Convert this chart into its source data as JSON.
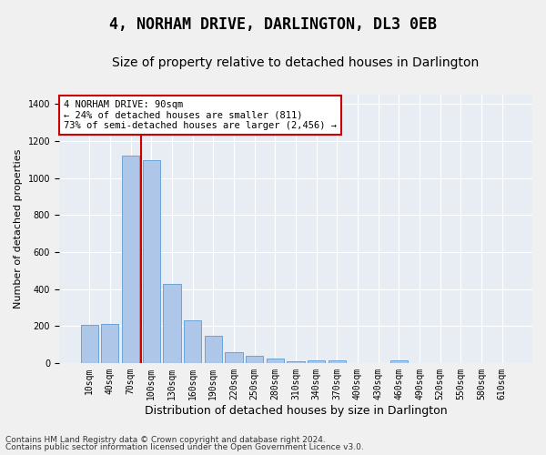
{
  "title": "4, NORHAM DRIVE, DARLINGTON, DL3 0EB",
  "subtitle": "Size of property relative to detached houses in Darlington",
  "xlabel": "Distribution of detached houses by size in Darlington",
  "ylabel": "Number of detached properties",
  "categories": [
    "10sqm",
    "40sqm",
    "70sqm",
    "100sqm",
    "130sqm",
    "160sqm",
    "190sqm",
    "220sqm",
    "250sqm",
    "280sqm",
    "310sqm",
    "340sqm",
    "370sqm",
    "400sqm",
    "430sqm",
    "460sqm",
    "490sqm",
    "520sqm",
    "550sqm",
    "580sqm",
    "610sqm"
  ],
  "values": [
    207,
    210,
    1120,
    1095,
    425,
    230,
    145,
    57,
    38,
    25,
    10,
    15,
    15,
    0,
    0,
    12,
    0,
    0,
    0,
    0,
    0
  ],
  "bar_color": "#aec6e8",
  "bar_edge_color": "#5b9bd5",
  "background_color": "#e8edf4",
  "fig_background_color": "#f0f0f0",
  "grid_color": "#ffffff",
  "vline_color": "#cc0000",
  "vline_x_index": 2.5,
  "annotation_box_text": "4 NORHAM DRIVE: 90sqm\n← 24% of detached houses are smaller (811)\n73% of semi-detached houses are larger (2,456) →",
  "annotation_box_color": "#cc0000",
  "footer1": "Contains HM Land Registry data © Crown copyright and database right 2024.",
  "footer2": "Contains public sector information licensed under the Open Government Licence v3.0.",
  "ylim": [
    0,
    1450
  ],
  "title_fontsize": 12,
  "subtitle_fontsize": 10,
  "xlabel_fontsize": 9,
  "ylabel_fontsize": 8,
  "tick_fontsize": 7,
  "footer_fontsize": 6.5,
  "annot_fontsize": 7.5
}
